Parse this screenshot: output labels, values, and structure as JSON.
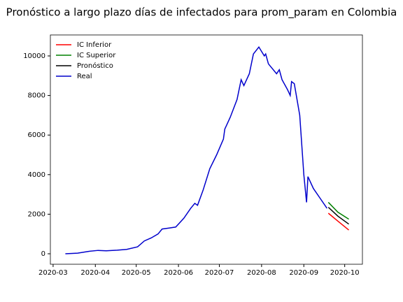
{
  "chart_data": {
    "type": "line",
    "title": "Pronóstico a largo plazo días de infectados para prom_param en Colombia",
    "xlim": [
      "2020-02-28",
      "2020-10-14"
    ],
    "ylim": [
      -530,
      11060
    ],
    "yticks": [
      0,
      2000,
      4000,
      6000,
      8000,
      10000
    ],
    "xticks": [
      {
        "value": "2020-03-01",
        "label": "2020-03"
      },
      {
        "value": "2020-04-01",
        "label": "2020-04"
      },
      {
        "value": "2020-05-01",
        "label": "2020-05"
      },
      {
        "value": "2020-06-01",
        "label": "2020-06"
      },
      {
        "value": "2020-07-01",
        "label": "2020-07"
      },
      {
        "value": "2020-08-01",
        "label": "2020-08"
      },
      {
        "value": "2020-09-01",
        "label": "2020-09"
      },
      {
        "value": "2020-10-01",
        "label": "2020-10"
      }
    ],
    "legend": "upper left",
    "grid": false,
    "series": [
      {
        "name": "IC Inferior",
        "color": "#ff0000",
        "x": [
          "2020-09-19",
          "2020-09-26",
          "2020-10-04"
        ],
        "values": [
          2050,
          1650,
          1200
        ]
      },
      {
        "name": "IC Superior",
        "color": "#008000",
        "x": [
          "2020-09-19",
          "2020-09-26",
          "2020-10-04"
        ],
        "values": [
          2600,
          2100,
          1750
        ]
      },
      {
        "name": "Pronóstico",
        "color": "#000000",
        "x": [
          "2020-09-19",
          "2020-09-26",
          "2020-10-04"
        ],
        "values": [
          2350,
          1900,
          1500
        ]
      },
      {
        "name": "Real",
        "color": "#0000cc",
        "x": [
          "2020-03-10",
          "2020-03-19",
          "2020-03-27",
          "2020-04-03",
          "2020-04-09",
          "2020-04-17",
          "2020-04-24",
          "2020-05-02",
          "2020-05-07",
          "2020-05-12",
          "2020-05-17",
          "2020-05-20",
          "2020-05-25",
          "2020-05-30",
          "2020-06-05",
          "2020-06-10",
          "2020-06-13",
          "2020-06-15",
          "2020-06-19",
          "2020-06-24",
          "2020-06-29",
          "2020-07-04",
          "2020-07-05",
          "2020-07-09",
          "2020-07-14",
          "2020-07-17",
          "2020-07-19",
          "2020-07-23",
          "2020-07-26",
          "2020-07-30",
          "2020-08-03",
          "2020-08-04",
          "2020-08-06",
          "2020-08-12",
          "2020-08-14",
          "2020-08-16",
          "2020-08-20",
          "2020-08-22",
          "2020-08-23",
          "2020-08-25",
          "2020-08-29",
          "2020-08-31",
          "2020-09-01",
          "2020-09-03",
          "2020-09-04",
          "2020-09-08",
          "2020-09-13",
          "2020-09-18"
        ],
        "values": [
          0,
          30,
          120,
          170,
          150,
          180,
          220,
          350,
          650,
          800,
          1000,
          1250,
          1300,
          1350,
          1800,
          2300,
          2550,
          2450,
          3200,
          4300,
          5000,
          5800,
          6300,
          6900,
          7800,
          8800,
          8500,
          9100,
          10100,
          10450,
          10000,
          10100,
          9600,
          9100,
          9300,
          8800,
          8300,
          8000,
          8700,
          8600,
          7000,
          5000,
          4000,
          2600,
          3900,
          3300,
          2800,
          2300
        ]
      }
    ]
  }
}
